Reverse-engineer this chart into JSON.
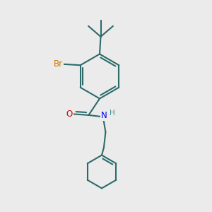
{
  "bg_color": "#ebebeb",
  "bond_color": "#2d6b6b",
  "bond_width": 1.5,
  "atom_colors": {
    "Br": "#cc7700",
    "O": "#cc0000",
    "N": "#0000ee",
    "H": "#4a9090",
    "C": "#2d6b6b"
  },
  "font_size_atoms": 8.5,
  "font_size_H": 7.5
}
